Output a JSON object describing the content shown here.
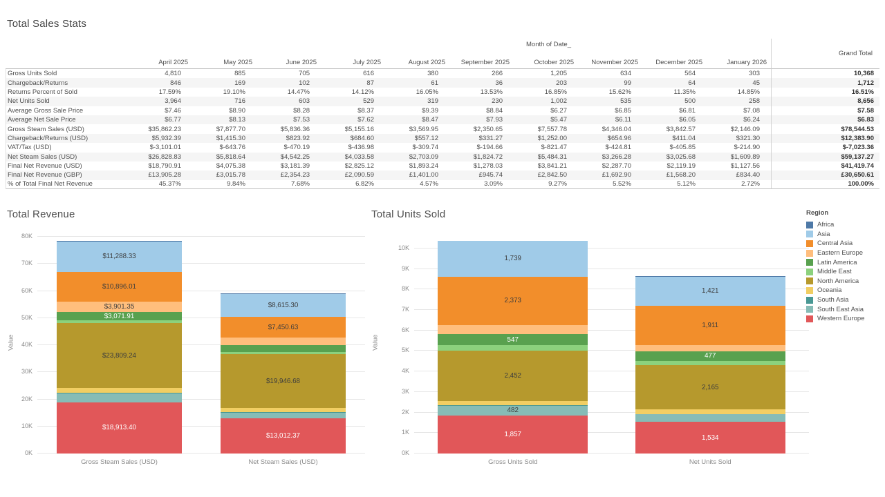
{
  "table": {
    "title": "Total Sales Stats",
    "column_dimension_label": "Month of Date_",
    "grand_total_label": "Grand Total",
    "columns": [
      "April 2025",
      "May 2025",
      "June 2025",
      "July 2025",
      "August 2025",
      "September 2025",
      "October 2025",
      "November 2025",
      "December 2025",
      "January 2026"
    ],
    "rows": [
      {
        "label": "Gross Units Sold",
        "values": [
          "4,810",
          "885",
          "705",
          "616",
          "380",
          "266",
          "1,205",
          "634",
          "564",
          "303"
        ],
        "total": "10,368"
      },
      {
        "label": "Chargeback/Returns",
        "values": [
          "846",
          "169",
          "102",
          "87",
          "61",
          "36",
          "203",
          "99",
          "64",
          "45"
        ],
        "total": "1,712"
      },
      {
        "label": "Returns Percent of Sold",
        "values": [
          "17.59%",
          "19.10%",
          "14.47%",
          "14.12%",
          "16.05%",
          "13.53%",
          "16.85%",
          "15.62%",
          "11.35%",
          "14.85%"
        ],
        "total": "16.51%"
      },
      {
        "label": "Net Units Sold",
        "values": [
          "3,964",
          "716",
          "603",
          "529",
          "319",
          "230",
          "1,002",
          "535",
          "500",
          "258"
        ],
        "total": "8,656"
      },
      {
        "label": "Average Gross Sale Price",
        "values": [
          "$7.46",
          "$8.90",
          "$8.28",
          "$8.37",
          "$9.39",
          "$8.84",
          "$6.27",
          "$6.85",
          "$6.81",
          "$7.08"
        ],
        "total": "$7.58"
      },
      {
        "label": "Average Net Sale Price",
        "values": [
          "$6.77",
          "$8.13",
          "$7.53",
          "$7.62",
          "$8.47",
          "$7.93",
          "$5.47",
          "$6.11",
          "$6.05",
          "$6.24"
        ],
        "total": "$6.83"
      },
      {
        "label": "Gross Steam Sales (USD)",
        "values": [
          "$35,862.23",
          "$7,877.70",
          "$5,836.36",
          "$5,155.16",
          "$3,569.95",
          "$2,350.65",
          "$7,557.78",
          "$4,346.04",
          "$3,842.57",
          "$2,146.09"
        ],
        "total": "$78,544.53"
      },
      {
        "label": "Chargeback/Returns (USD)",
        "values": [
          "$5,932.39",
          "$1,415.30",
          "$823.92",
          "$684.60",
          "$557.12",
          "$331.27",
          "$1,252.00",
          "$654.96",
          "$411.04",
          "$321.30"
        ],
        "total": "$12,383.90"
      },
      {
        "label": "VAT/Tax (USD)",
        "values": [
          "$-3,101.01",
          "$-643.76",
          "$-470.19",
          "$-436.98",
          "$-309.74",
          "$-194.66",
          "$-821.47",
          "$-424.81",
          "$-405.85",
          "$-214.90"
        ],
        "total": "$-7,023.36"
      },
      {
        "label": "Net Steam Sales (USD)",
        "values": [
          "$26,828.83",
          "$5,818.64",
          "$4,542.25",
          "$4,033.58",
          "$2,703.09",
          "$1,824.72",
          "$5,484.31",
          "$3,266.28",
          "$3,025.68",
          "$1,609.89"
        ],
        "total": "$59,137.27"
      },
      {
        "label": "Final Net Revenue (USD)",
        "values": [
          "$18,790.91",
          "$4,075.38",
          "$3,181.39",
          "$2,825.12",
          "$1,893.24",
          "$1,278.03",
          "$3,841.21",
          "$2,287.70",
          "$2,119.19",
          "$1,127.56"
        ],
        "total": "$41,419.74"
      },
      {
        "label": "Final Net Revenue (GBP)",
        "values": [
          "£13,905.28",
          "£3,015.78",
          "£2,354.23",
          "£2,090.59",
          "£1,401.00",
          "£945.74",
          "£2,842.50",
          "£1,692.90",
          "£1,568.20",
          "£834.40"
        ],
        "total": "£30,650.61"
      },
      {
        "label": "% of Total Final Net Revenue",
        "values": [
          "45.37%",
          "9.84%",
          "7.68%",
          "6.82%",
          "4.57%",
          "3.09%",
          "9.27%",
          "5.52%",
          "5.12%",
          "2.72%"
        ],
        "total": "100.00%"
      }
    ]
  },
  "chart_data": [
    {
      "type": "bar",
      "stacked": true,
      "title": "Total Revenue",
      "ylabel": "Value",
      "xlabel": "",
      "ylim": [
        0,
        80000
      ],
      "ytick_step": 10000,
      "grid": true,
      "legend_position": "right",
      "series_order": "top-to-bottom",
      "categories": [
        "Gross Steam Sales (USD)",
        "Net Steam Sales (USD)"
      ],
      "series": [
        {
          "name": "Africa",
          "color": "#4e79a7",
          "values": [
            200,
            150
          ],
          "labels": [
            "",
            ""
          ],
          "label_color": "#3d3d3d"
        },
        {
          "name": "Asia",
          "color": "#a0cbe8",
          "values": [
            11288.33,
            8615.3
          ],
          "labels": [
            "$11,288.33",
            "$8,615.30"
          ],
          "label_color": "#3d3d3d"
        },
        {
          "name": "Central Asia",
          "color": "#f28e2b",
          "values": [
            10896.01,
            7450.63
          ],
          "labels": [
            "$10,896.01",
            "$7,450.63"
          ],
          "label_color": "#3d3d3d"
        },
        {
          "name": "Eastern Europe",
          "color": "#ffbe7d",
          "values": [
            3901.35,
            2813
          ],
          "labels": [
            "$3,901.35",
            ""
          ],
          "label_color": "#3d3d3d"
        },
        {
          "name": "Latin America",
          "color": "#59a14f",
          "values": [
            3071.91,
            2736
          ],
          "labels": [
            "$3,071.91",
            ""
          ],
          "label_color": "#ffffff"
        },
        {
          "name": "Middle East",
          "color": "#8cd17d",
          "values": [
            1100,
            690
          ],
          "labels": [
            "",
            ""
          ],
          "label_color": "#3d3d3d"
        },
        {
          "name": "North America",
          "color": "#b6992d",
          "values": [
            23809.24,
            19946.68
          ],
          "labels": [
            "$23,809.24",
            "$19,946.68"
          ],
          "label_color": "#3d3d3d"
        },
        {
          "name": "Oceania",
          "color": "#f1ce63",
          "values": [
            1800,
            1534
          ],
          "labels": [
            "",
            ""
          ],
          "label_color": "#3d3d3d"
        },
        {
          "name": "South Asia",
          "color": "#499894",
          "values": [
            300,
            189
          ],
          "labels": [
            "",
            ""
          ],
          "label_color": "#3d3d3d"
        },
        {
          "name": "South East Asia",
          "color": "#86bcb6",
          "values": [
            3264.29,
            2000.29
          ],
          "labels": [
            "",
            ""
          ],
          "label_color": "#3d3d3d"
        },
        {
          "name": "Western Europe",
          "color": "#e15759",
          "values": [
            18913.4,
            13012.37
          ],
          "labels": [
            "$18,913.40",
            "$13,012.37"
          ],
          "label_color": "#ffffff"
        }
      ]
    },
    {
      "type": "bar",
      "stacked": true,
      "title": "Total Units Sold",
      "ylabel": "Value",
      "xlabel": "",
      "ylim": [
        0,
        10000
      ],
      "ytick_step": 1000,
      "grid": true,
      "legend_position": "right",
      "series_order": "top-to-bottom",
      "categories": [
        "Gross Units Sold",
        "Net Units Sold"
      ],
      "series": [
        {
          "name": "Africa",
          "color": "#4e79a7",
          "values": [
            2,
            30
          ],
          "labels": [
            "",
            ""
          ],
          "label_color": "#3d3d3d"
        },
        {
          "name": "Asia",
          "color": "#a0cbe8",
          "values": [
            1739,
            1421
          ],
          "labels": [
            "1,739",
            "1,421"
          ],
          "label_color": "#3d3d3d"
        },
        {
          "name": "Central Asia",
          "color": "#f28e2b",
          "values": [
            2373,
            1911
          ],
          "labels": [
            "2,373",
            "1,911"
          ],
          "label_color": "#3d3d3d"
        },
        {
          "name": "Eastern Europe",
          "color": "#ffbe7d",
          "values": [
            432,
            303
          ],
          "labels": [
            "",
            ""
          ],
          "label_color": "#3d3d3d"
        },
        {
          "name": "Latin America",
          "color": "#59a14f",
          "values": [
            547,
            477
          ],
          "labels": [
            "547",
            "477"
          ],
          "label_color": "#ffffff"
        },
        {
          "name": "Middle East",
          "color": "#8cd17d",
          "values": [
            263,
            202
          ],
          "labels": [
            "",
            ""
          ],
          "label_color": "#3d3d3d"
        },
        {
          "name": "North America",
          "color": "#b6992d",
          "values": [
            2452,
            2165
          ],
          "labels": [
            "2,452",
            "2,165"
          ],
          "label_color": "#3d3d3d"
        },
        {
          "name": "Oceania",
          "color": "#f1ce63",
          "values": [
            219,
            230
          ],
          "labels": [
            "",
            ""
          ],
          "label_color": "#3d3d3d"
        },
        {
          "name": "South Asia",
          "color": "#499894",
          "values": [
            2,
            3
          ],
          "labels": [
            "",
            ""
          ],
          "label_color": "#3d3d3d"
        },
        {
          "name": "South East Asia",
          "color": "#86bcb6",
          "values": [
            482,
            380
          ],
          "labels": [
            "482",
            ""
          ],
          "label_color": "#3d3d3d"
        },
        {
          "name": "Western Europe",
          "color": "#e15759",
          "values": [
            1857,
            1534
          ],
          "labels": [
            "1,857",
            "1,534"
          ],
          "label_color": "#ffffff"
        }
      ]
    }
  ],
  "legend": {
    "title": "Region",
    "items": [
      {
        "label": "Africa",
        "color": "#4e79a7"
      },
      {
        "label": "Asia",
        "color": "#a0cbe8"
      },
      {
        "label": "Central Asia",
        "color": "#f28e2b"
      },
      {
        "label": "Eastern Europe",
        "color": "#ffbe7d"
      },
      {
        "label": "Latin America",
        "color": "#59a14f"
      },
      {
        "label": "Middle East",
        "color": "#8cd17d"
      },
      {
        "label": "North America",
        "color": "#b6992d"
      },
      {
        "label": "Oceania",
        "color": "#f1ce63"
      },
      {
        "label": "South Asia",
        "color": "#499894"
      },
      {
        "label": "South East Asia",
        "color": "#86bcb6"
      },
      {
        "label": "Western Europe",
        "color": "#e15759"
      }
    ]
  }
}
